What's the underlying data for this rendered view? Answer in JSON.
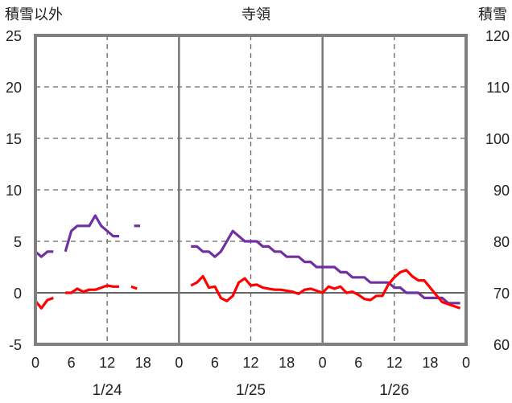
{
  "chart_data": {
    "type": "line",
    "title": "寺領",
    "ylabel_left": "積雪以外",
    "ylabel_right": "積雪",
    "ylim_left": [
      -5,
      25
    ],
    "ylim_right": [
      60,
      120
    ],
    "yticks_left": [
      "25",
      "20",
      "15",
      "10",
      "5",
      "0",
      "-5"
    ],
    "yticks_right": [
      "120",
      "110",
      "100",
      "90",
      "80",
      "70",
      "60"
    ],
    "xticks": [
      "0",
      "6",
      "12",
      "18",
      "0",
      "6",
      "12",
      "18",
      "0",
      "6",
      "12",
      "18",
      "0"
    ],
    "dates": [
      "1/24",
      "1/25",
      "1/26"
    ],
    "xlim_hours": [
      0,
      72
    ],
    "grid": true,
    "colors": {
      "series_a": "#7030a0",
      "series_b": "#ff0000"
    },
    "series": [
      {
        "axis": "left",
        "color": "#7030a0",
        "segments": [
          [
            [
              0,
              4
            ],
            [
              1,
              3.5
            ],
            [
              2,
              4
            ],
            [
              3,
              4
            ]
          ],
          [
            [
              5,
              4
            ],
            [
              6,
              6
            ],
            [
              7,
              6.5
            ],
            [
              8,
              6.5
            ],
            [
              9,
              6.5
            ],
            [
              10,
              7.5
            ],
            [
              11,
              6.5
            ],
            [
              12,
              6
            ],
            [
              13,
              5.5
            ],
            [
              14,
              5.5
            ]
          ],
          [
            [
              16.5,
              6.5
            ],
            [
              17.5,
              6.5
            ]
          ],
          [
            [
              26,
              4.5
            ],
            [
              27,
              4.5
            ],
            [
              28,
              4
            ],
            [
              29,
              4
            ],
            [
              30,
              3.5
            ],
            [
              31,
              4
            ],
            [
              32,
              5
            ],
            [
              33,
              6
            ],
            [
              34,
              5.5
            ],
            [
              35,
              5
            ],
            [
              36,
              5
            ],
            [
              37,
              5
            ],
            [
              38,
              4.5
            ],
            [
              39,
              4.5
            ],
            [
              40,
              4
            ],
            [
              41,
              4
            ],
            [
              42,
              3.5
            ],
            [
              43,
              3.5
            ],
            [
              44,
              3.5
            ],
            [
              45,
              3
            ],
            [
              46,
              3
            ],
            [
              47,
              2.5
            ],
            [
              48,
              2.5
            ],
            [
              49,
              2.5
            ],
            [
              50,
              2.5
            ],
            [
              51,
              2
            ],
            [
              52,
              2
            ],
            [
              53,
              1.5
            ],
            [
              54,
              1.5
            ],
            [
              55,
              1.5
            ],
            [
              56,
              1
            ],
            [
              57,
              1
            ],
            [
              58,
              1
            ],
            [
              59,
              1
            ],
            [
              60,
              0.5
            ],
            [
              61,
              0.5
            ],
            [
              62,
              0
            ],
            [
              63,
              0
            ],
            [
              64,
              0
            ],
            [
              65,
              -0.5
            ],
            [
              66,
              -0.5
            ],
            [
              67,
              -0.5
            ],
            [
              68,
              -0.5
            ],
            [
              69,
              -1
            ],
            [
              70,
              -1
            ],
            [
              71,
              -1
            ]
          ]
        ]
      },
      {
        "axis": "left",
        "color": "#ff0000",
        "segments": [
          [
            [
              0,
              -0.8
            ],
            [
              1,
              -1.5
            ],
            [
              2,
              -0.7
            ],
            [
              3,
              -0.5
            ]
          ],
          [
            [
              5,
              0
            ],
            [
              6,
              0
            ],
            [
              7,
              0.4
            ],
            [
              8,
              0.1
            ],
            [
              9,
              0.3
            ],
            [
              10,
              0.3
            ],
            [
              11,
              0.5
            ],
            [
              12,
              0.7
            ],
            [
              13,
              0.6
            ],
            [
              14,
              0.6
            ]
          ],
          [
            [
              16,
              0.6
            ],
            [
              17,
              0.4
            ]
          ],
          [
            [
              26,
              0.7
            ],
            [
              27,
              1
            ],
            [
              28,
              1.6
            ],
            [
              29,
              0.5
            ],
            [
              30,
              0.6
            ],
            [
              31,
              -0.5
            ],
            [
              32,
              -0.8
            ],
            [
              33,
              -0.3
            ],
            [
              34,
              1
            ],
            [
              35,
              1.4
            ],
            [
              36,
              0.7
            ],
            [
              37,
              0.8
            ],
            [
              38,
              0.5
            ],
            [
              39,
              0.4
            ],
            [
              40,
              0.3
            ],
            [
              41,
              0.3
            ],
            [
              42,
              0.2
            ],
            [
              43,
              0.1
            ],
            [
              44,
              -0.1
            ],
            [
              45,
              0.3
            ],
            [
              46,
              0.4
            ],
            [
              47,
              0.2
            ],
            [
              48,
              0
            ],
            [
              49,
              0.6
            ],
            [
              50,
              0.4
            ],
            [
              51,
              0.6
            ],
            [
              52,
              0
            ],
            [
              53,
              0.1
            ],
            [
              54,
              -0.2
            ],
            [
              55,
              -0.6
            ],
            [
              56,
              -0.7
            ],
            [
              57,
              -0.3
            ],
            [
              58,
              -0.3
            ],
            [
              59,
              0.8
            ],
            [
              60,
              1.5
            ],
            [
              61,
              2
            ],
            [
              62,
              2.2
            ],
            [
              63,
              1.6
            ],
            [
              64,
              1.2
            ],
            [
              65,
              1.2
            ],
            [
              66,
              0.5
            ],
            [
              67,
              -0.2
            ],
            [
              68,
              -0.9
            ],
            [
              69,
              -1.1
            ],
            [
              70,
              -1.3
            ],
            [
              71,
              -1.5
            ]
          ]
        ]
      }
    ]
  }
}
